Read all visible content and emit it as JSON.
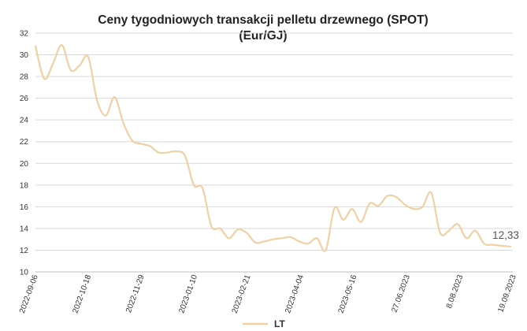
{
  "chart_data": {
    "type": "line",
    "title": "Ceny tygodniowych transakcji pelletu drzewnego (SPOT)",
    "subtitle": "(Eur/GJ)",
    "xlabel": "",
    "ylabel": "",
    "ylim": [
      10,
      32
    ],
    "yticks": [
      "32",
      "30",
      "28",
      "26",
      "24",
      "22",
      "20",
      "18",
      "16",
      "14",
      "12",
      "10"
    ],
    "x_tick_labels": [
      "2022-09-06",
      "2022-10-18",
      "2022-11-29",
      "2023-01-10",
      "2023-02-21",
      "2023-04-04",
      "2023-05-16",
      "27.06.2023",
      "8.08.2023",
      "19.09.2023"
    ],
    "grid": true,
    "legend_position": "bottom",
    "colors": {
      "series": "#f0d1a4",
      "grid": "#d9d9d9",
      "axis": "#bfbfbf"
    },
    "series": [
      {
        "name": "LT",
        "values": [
          30.8,
          27.8,
          29.2,
          30.9,
          28.6,
          29.0,
          29.8,
          25.8,
          24.4,
          26.1,
          23.7,
          22.1,
          21.8,
          21.6,
          21.0,
          21.0,
          21.1,
          20.7,
          18.0,
          17.7,
          14.2,
          14.0,
          13.1,
          13.9,
          13.6,
          12.7,
          12.8,
          13.0,
          13.1,
          13.2,
          12.8,
          12.6,
          13.1,
          12.0,
          15.9,
          14.8,
          15.8,
          14.6,
          16.3,
          16.1,
          17.0,
          16.9,
          16.2,
          15.8,
          16.0,
          17.3,
          13.6,
          13.8,
          14.4,
          13.1,
          13.8,
          12.6,
          12.5,
          12.4,
          12.33
        ]
      }
    ],
    "annotations": [
      {
        "text": "12,33"
      }
    ]
  }
}
